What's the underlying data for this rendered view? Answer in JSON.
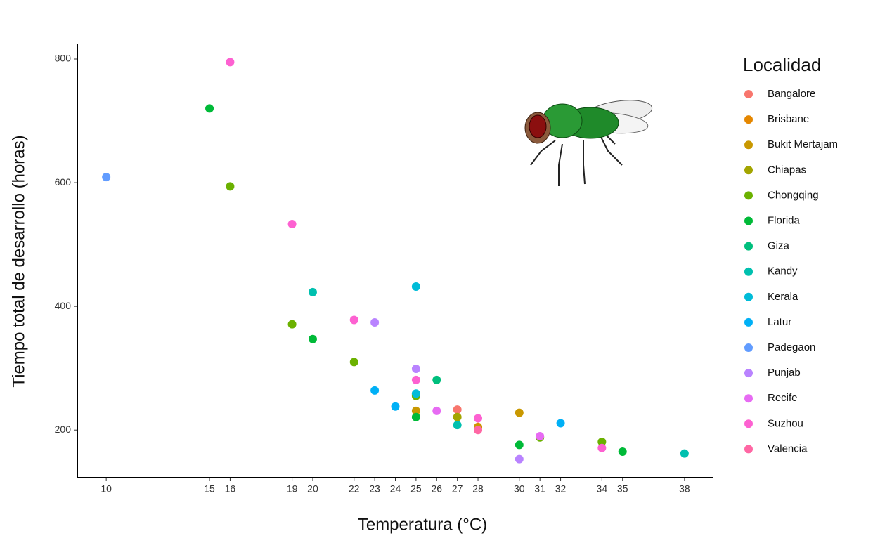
{
  "chart_data": {
    "type": "scatter",
    "x_label": "Temperatura (°C)",
    "y_label": "Tiempo total de desarrollo (horas)",
    "legend_title": "Localidad",
    "legend": "right",
    "grid": false,
    "xlim": [
      8.6,
      39.4
    ],
    "ylim": [
      123,
      825
    ],
    "xticks": [
      10,
      15,
      16,
      19,
      20,
      22,
      23,
      24,
      25,
      26,
      27,
      28,
      30,
      31,
      32,
      34,
      35,
      38
    ],
    "yticks": [
      200,
      400,
      600,
      800
    ],
    "series": [
      {
        "name": "Bangalore",
        "color": "#F8766D",
        "x": [
          27
        ],
        "values": [
          233
        ]
      },
      {
        "name": "Brisbane",
        "color": "#E58700",
        "x": [
          28
        ],
        "values": [
          205
        ]
      },
      {
        "name": "Bukit Mertajam",
        "color": "#C99800",
        "x": [
          30,
          25,
          28
        ],
        "values": [
          228,
          231,
          204
        ]
      },
      {
        "name": "Chiapas",
        "color": "#A3A500",
        "x": [
          27,
          25
        ],
        "values": [
          221,
          258
        ]
      },
      {
        "name": "Chongqing",
        "color": "#6BB100",
        "x": [
          16,
          19,
          22,
          25,
          31,
          34
        ],
        "values": [
          594,
          371,
          310,
          255,
          188,
          181
        ]
      },
      {
        "name": "Florida",
        "color": "#00BA38",
        "x": [
          15,
          20,
          25,
          30,
          35
        ],
        "values": [
          720,
          347,
          221,
          176,
          165
        ]
      },
      {
        "name": "Giza",
        "color": "#00BF7D",
        "x": [
          26
        ],
        "values": [
          281
        ]
      },
      {
        "name": "Kandy",
        "color": "#00C0AF",
        "x": [
          20,
          27,
          38
        ],
        "values": [
          423,
          208,
          162
        ]
      },
      {
        "name": "Kerala",
        "color": "#00BCD8",
        "x": [
          25,
          25
        ],
        "values": [
          432,
          259
        ]
      },
      {
        "name": "Latur",
        "color": "#00B0F6",
        "x": [
          23,
          24,
          32
        ],
        "values": [
          264,
          238,
          211
        ]
      },
      {
        "name": "Padegaon",
        "color": "#619CFF",
        "x": [
          10
        ],
        "values": [
          609
        ]
      },
      {
        "name": "Punjab",
        "color": "#B983FF",
        "x": [
          23,
          25,
          30
        ],
        "values": [
          374,
          299,
          153
        ]
      },
      {
        "name": "Recife",
        "color": "#E76BF3",
        "x": [
          26,
          31
        ],
        "values": [
          231,
          190
        ]
      },
      {
        "name": "Suzhou",
        "color": "#FD61D1",
        "x": [
          16,
          19,
          22,
          25,
          28,
          34
        ],
        "values": [
          795,
          533,
          378,
          281,
          219,
          171
        ]
      },
      {
        "name": "Valencia",
        "color": "#FF67A4",
        "x": [
          28
        ],
        "values": [
          200
        ]
      }
    ]
  }
}
